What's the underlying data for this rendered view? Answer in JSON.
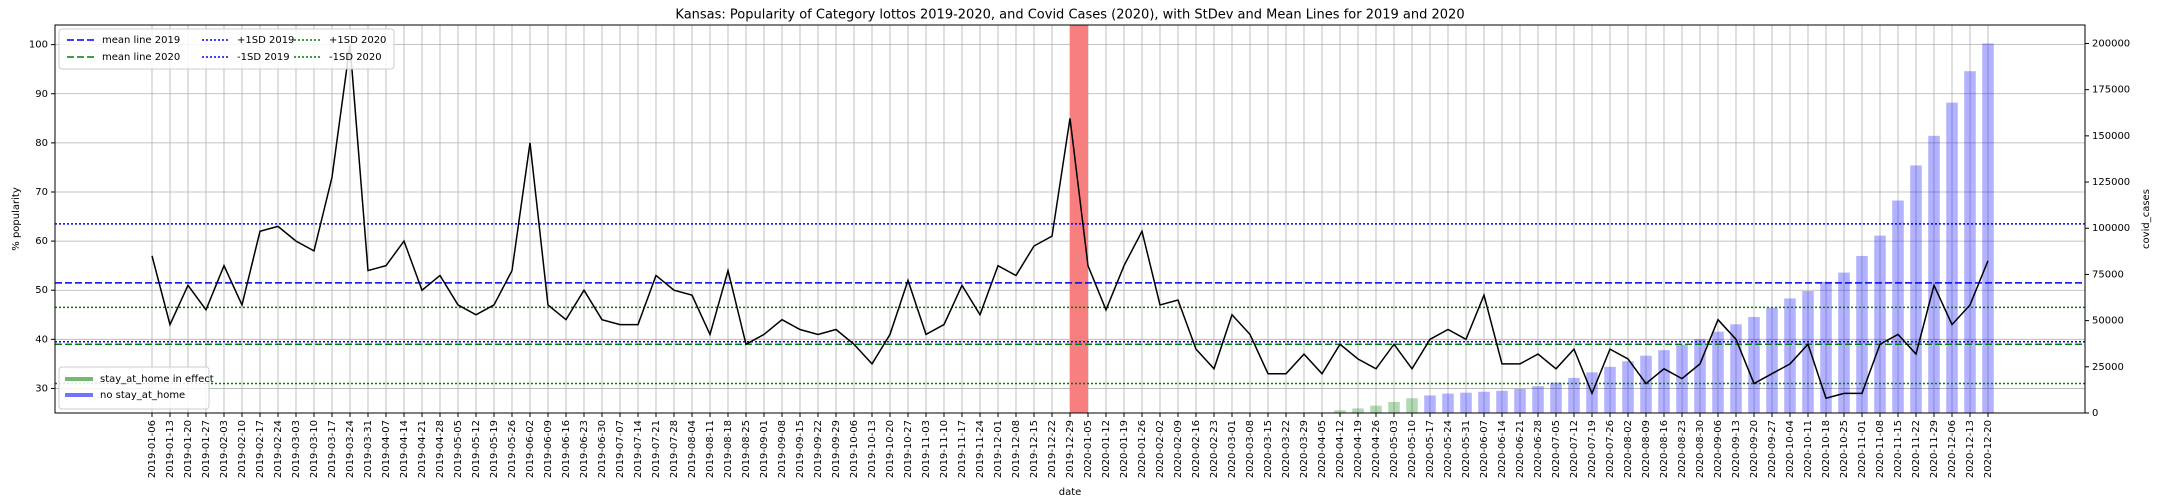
{
  "chart_data": {
    "type": "line",
    "title": "Kansas: Popularity of Category lottos 2019-2020, and Covid Cases (2020), with StDev and Mean Lines for 2019 and 2020",
    "xlabel": "date",
    "ylabel": "% popularity",
    "y2label": "covid_cases",
    "categories": [
      "2019-01-06",
      "2019-01-13",
      "2019-01-20",
      "2019-01-27",
      "2019-02-03",
      "2019-02-10",
      "2019-02-17",
      "2019-02-24",
      "2019-03-03",
      "2019-03-10",
      "2019-03-17",
      "2019-03-24",
      "2019-03-31",
      "2019-04-07",
      "2019-04-14",
      "2019-04-21",
      "2019-04-28",
      "2019-05-05",
      "2019-05-12",
      "2019-05-19",
      "2019-05-26",
      "2019-06-02",
      "2019-06-09",
      "2019-06-16",
      "2019-06-23",
      "2019-06-30",
      "2019-07-07",
      "2019-07-14",
      "2019-07-21",
      "2019-07-28",
      "2019-08-04",
      "2019-08-11",
      "2019-08-18",
      "2019-08-25",
      "2019-09-01",
      "2019-09-08",
      "2019-09-15",
      "2019-09-22",
      "2019-09-29",
      "2019-10-06",
      "2019-10-13",
      "2019-10-20",
      "2019-10-27",
      "2019-11-03",
      "2019-11-10",
      "2019-11-17",
      "2019-11-24",
      "2019-12-01",
      "2019-12-08",
      "2019-12-15",
      "2019-12-22",
      "2019-12-29",
      "2020-01-05",
      "2020-01-12",
      "2020-01-19",
      "2020-01-26",
      "2020-02-02",
      "2020-02-09",
      "2020-02-16",
      "2020-02-23",
      "2020-03-01",
      "2020-03-08",
      "2020-03-15",
      "2020-03-22",
      "2020-03-29",
      "2020-04-05",
      "2020-04-12",
      "2020-04-19",
      "2020-04-26",
      "2020-05-03",
      "2020-05-10",
      "2020-05-17",
      "2020-05-24",
      "2020-05-31",
      "2020-06-07",
      "2020-06-14",
      "2020-06-21",
      "2020-06-28",
      "2020-07-05",
      "2020-07-12",
      "2020-07-19",
      "2020-07-26",
      "2020-08-02",
      "2020-08-09",
      "2020-08-16",
      "2020-08-23",
      "2020-08-30",
      "2020-09-06",
      "2020-09-13",
      "2020-09-20",
      "2020-09-27",
      "2020-10-04",
      "2020-10-11",
      "2020-10-18",
      "2020-10-25",
      "2020-11-01",
      "2020-11-08",
      "2020-11-15",
      "2020-11-22",
      "2020-11-29",
      "2020-12-06",
      "2020-12-13",
      "2020-12-20"
    ],
    "series": [
      {
        "type": "line",
        "color": "#000000",
        "values": [
          57,
          43,
          51,
          46,
          55,
          47,
          62,
          63,
          60,
          58,
          73,
          100,
          54,
          55,
          60,
          50,
          53,
          47,
          45,
          47,
          54,
          80,
          47,
          44,
          50,
          44,
          43,
          43,
          53,
          50,
          49,
          41,
          54,
          39,
          41,
          44,
          42,
          41,
          42,
          39,
          35,
          41,
          52,
          41,
          43,
          51,
          45,
          55,
          53,
          59,
          61,
          85,
          55,
          46,
          55,
          62,
          47,
          48,
          38,
          34,
          45,
          41,
          33,
          33,
          37,
          33,
          39,
          36,
          34,
          39,
          34,
          40,
          42,
          40,
          49,
          35,
          35,
          37,
          34,
          38,
          29,
          38,
          36,
          31,
          34,
          32,
          35,
          44,
          40,
          31,
          33,
          35,
          39,
          28,
          29,
          29,
          39,
          41,
          37,
          51,
          43,
          47,
          56
        ]
      },
      {
        "type": "bar",
        "axis": "y2",
        "name": "stay_at_home in effect",
        "color": "#008000",
        "values": [
          null,
          null,
          null,
          null,
          null,
          null,
          null,
          null,
          null,
          null,
          null,
          null,
          null,
          null,
          null,
          null,
          null,
          null,
          null,
          null,
          null,
          null,
          null,
          null,
          null,
          null,
          null,
          null,
          null,
          null,
          null,
          null,
          null,
          null,
          null,
          null,
          null,
          null,
          null,
          null,
          null,
          null,
          null,
          null,
          null,
          null,
          null,
          null,
          null,
          null,
          null,
          null,
          null,
          null,
          null,
          null,
          null,
          null,
          null,
          null,
          null,
          null,
          null,
          null,
          null,
          null,
          1500,
          2500,
          4000,
          6000,
          8000,
          null,
          null,
          null,
          null,
          null,
          null,
          null,
          null,
          null,
          null,
          null,
          null,
          null,
          null,
          null,
          null,
          null,
          null,
          null,
          null,
          null,
          null,
          null,
          null,
          null,
          null,
          null,
          null,
          null,
          null,
          null,
          null
        ]
      },
      {
        "type": "bar",
        "axis": "y2",
        "name": "no stay_at_home",
        "color": "#0000ff",
        "values": [
          null,
          null,
          null,
          null,
          null,
          null,
          null,
          null,
          null,
          null,
          null,
          null,
          null,
          null,
          null,
          null,
          null,
          null,
          null,
          null,
          null,
          null,
          null,
          null,
          null,
          null,
          null,
          null,
          null,
          null,
          null,
          null,
          null,
          null,
          null,
          null,
          null,
          null,
          null,
          null,
          null,
          null,
          null,
          null,
          null,
          null,
          null,
          null,
          null,
          null,
          null,
          null,
          null,
          null,
          null,
          null,
          null,
          null,
          null,
          null,
          null,
          null,
          null,
          null,
          null,
          null,
          null,
          null,
          null,
          null,
          null,
          9500,
          10500,
          11000,
          11500,
          12000,
          13000,
          14500,
          16500,
          19000,
          22000,
          25000,
          28000,
          31000,
          34000,
          37000,
          40000,
          44000,
          48000,
          52000,
          57000,
          62000,
          66000,
          71000,
          76000,
          85000,
          96000,
          115000,
          134000,
          150000,
          168000,
          185000,
          200000
        ]
      }
    ],
    "bar_alpha": 0.3,
    "hlines": [
      {
        "name": "mean line 2019",
        "value": 51.5,
        "color": "#0000ff",
        "style": "dashed"
      },
      {
        "name": "mean line 2020",
        "value": 39,
        "color": "#008000",
        "style": "dashed"
      },
      {
        "name": "+1SD 2019",
        "value": 63.5,
        "color": "#0000ff",
        "style": "dotted"
      },
      {
        "name": "-1SD 2019",
        "value": 39.5,
        "color": "#0000ff",
        "style": "dotted"
      },
      {
        "name": "+1SD 2020",
        "value": 46.5,
        "color": "#008000",
        "style": "dotted"
      },
      {
        "name": "-1SD 2020",
        "value": 31,
        "color": "#008000",
        "style": "dotted"
      }
    ],
    "span": {
      "x0": "2019-12-29",
      "x1": "2020-01-05",
      "color": "#f77f7f"
    },
    "ylim": [
      25,
      104
    ],
    "yticks": [
      30,
      40,
      50,
      60,
      70,
      80,
      90,
      100
    ],
    "y2lim": [
      0,
      210000
    ],
    "y2ticks": [
      0,
      25000,
      50000,
      75000,
      100000,
      125000,
      150000,
      175000,
      200000
    ],
    "grid": true,
    "legend_loc": "upper left",
    "bar_legend_loc": "lower left"
  }
}
